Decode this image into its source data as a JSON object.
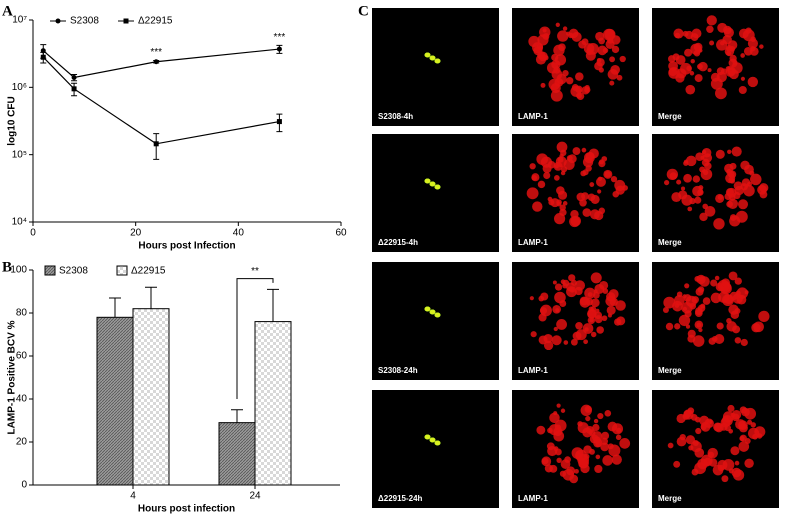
{
  "panel_labels": [
    "A",
    "B",
    "C"
  ],
  "chart_data": [
    {
      "type": "line",
      "log_y": true,
      "xlabel": "Hours post Infection",
      "ylabel": "log10 CFU",
      "xlim": [
        0,
        60
      ],
      "xticks": [
        0,
        20,
        40,
        60
      ],
      "ylim": [
        10000,
        10000000
      ],
      "yticks": [
        {
          "value": 10000,
          "label": "10⁴"
        },
        {
          "value": 100000,
          "label": "10⁵"
        },
        {
          "value": 1000000,
          "label": "10⁶"
        },
        {
          "value": 10000000,
          "label": "10⁷"
        }
      ],
      "x": [
        2,
        8,
        24,
        48
      ],
      "series": [
        {
          "name": "S2308",
          "color": "#000000",
          "marker": "circle",
          "values": [
            3500000,
            1400000,
            2400000,
            3700000
          ],
          "errors": [
            800000,
            150000,
            100000,
            500000
          ]
        },
        {
          "name": "Δ22915",
          "color": "#000000",
          "marker": "square",
          "values": [
            2800000,
            950000,
            145000,
            310000
          ],
          "errors": [
            500000,
            200000,
            60000,
            90000
          ]
        }
      ],
      "annotations": [
        "***",
        "***"
      ]
    },
    {
      "type": "bar",
      "xlabel": "Hours post infection",
      "ylabel": "LAMP-1 Positive BCV %",
      "categories": [
        "4",
        "24"
      ],
      "ylim": [
        0,
        100
      ],
      "yticks": [
        0,
        20,
        40,
        60,
        80,
        100
      ],
      "series": [
        {
          "name": "S2308",
          "color": "#9a9a9a",
          "values": [
            78,
            29
          ],
          "errors": [
            9,
            6
          ]
        },
        {
          "name": "Δ22915",
          "color": "#d8d8d8",
          "values": [
            82,
            76
          ],
          "errors": [
            10,
            15
          ]
        }
      ],
      "annotation": "**"
    }
  ],
  "panel_c": {
    "rows": [
      [
        "S2308-4h",
        "LAMP-1",
        "Merge"
      ],
      [
        "Δ22915-4h",
        "LAMP-1",
        "Merge"
      ],
      [
        "S2308-24h",
        "LAMP-1",
        "Merge"
      ],
      [
        "Δ22915-24h",
        "LAMP-1",
        "Merge"
      ]
    ]
  }
}
